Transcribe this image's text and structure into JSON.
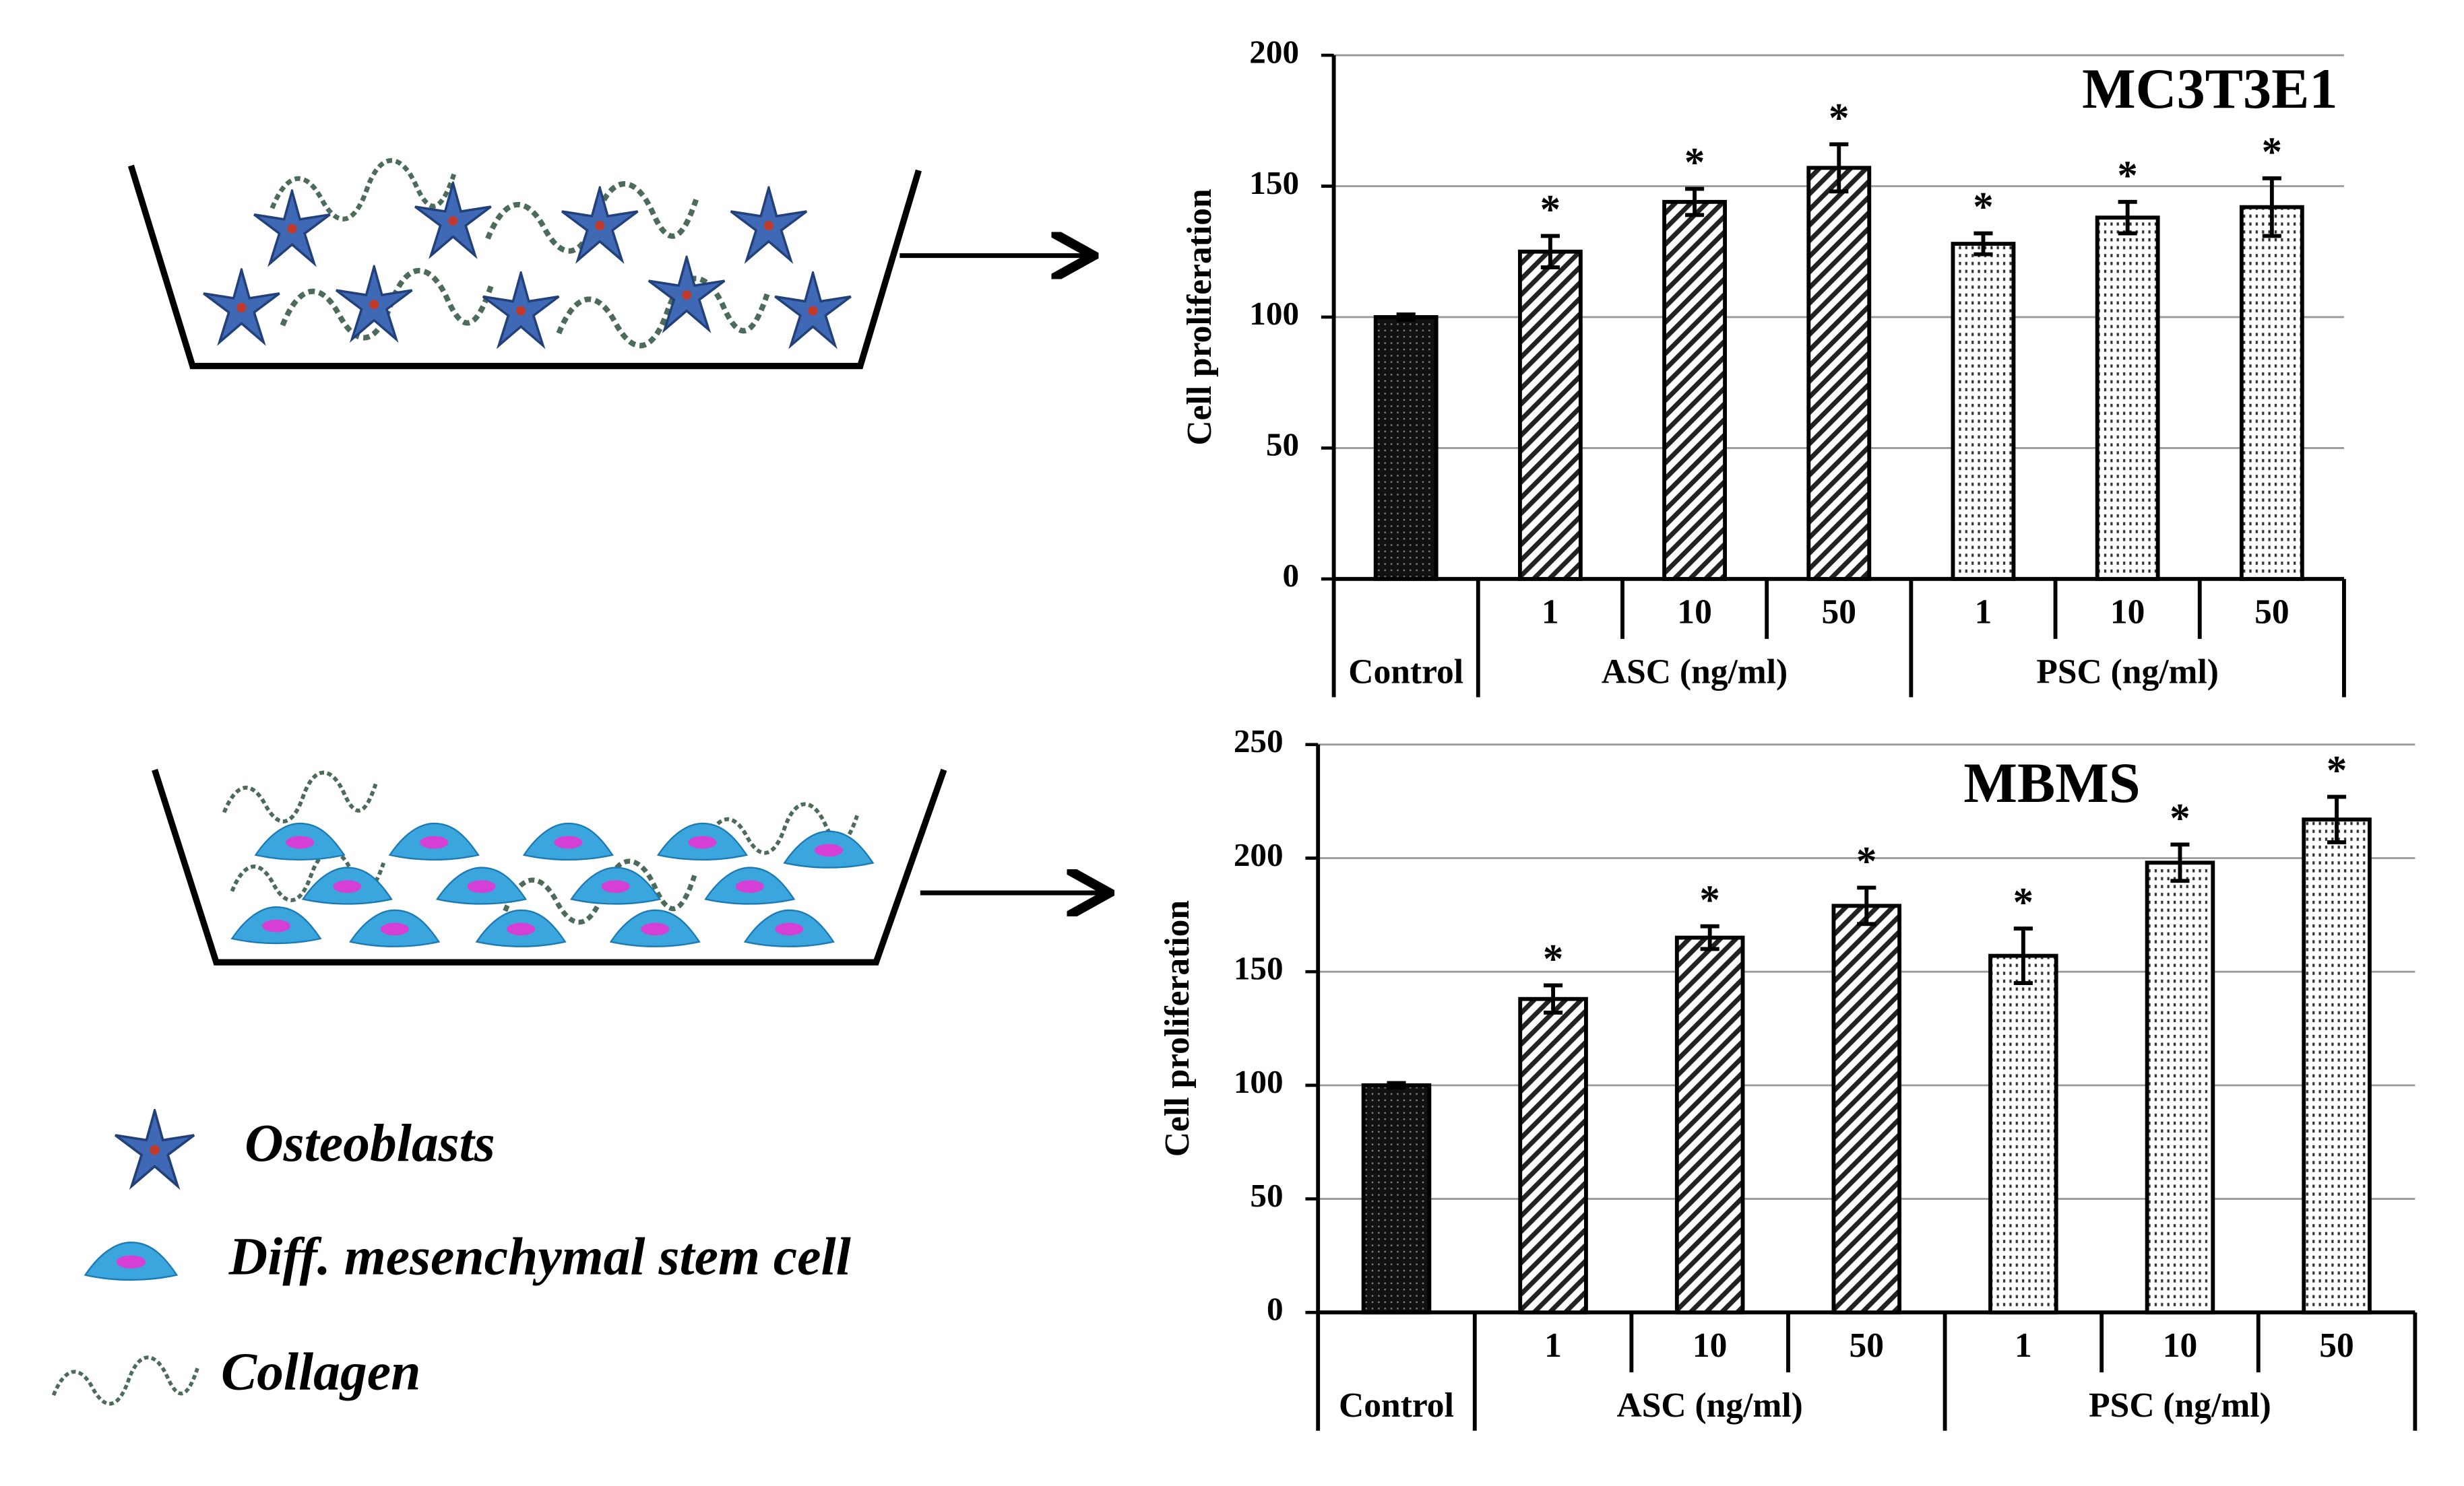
{
  "schematic": {
    "labels": [
      "Osteoblasts",
      "Diff. mesenchymal stem cell",
      "Collagen"
    ]
  },
  "chart_data": [
    {
      "type": "bar",
      "title": "MC3T3E1",
      "ylabel": "Cell proliferation",
      "categories": [
        null,
        "1",
        "10",
        "50",
        "1",
        "10",
        "50"
      ],
      "groups": [
        {
          "name": "Control",
          "count": 1
        },
        {
          "name": "ASC (ng/ml)",
          "count": 3
        },
        {
          "name": "PSC (ng/ml)",
          "count": 3
        }
      ],
      "values": [
        100,
        125,
        144,
        157,
        128,
        138,
        142
      ],
      "errors": [
        1,
        6,
        5,
        9,
        4,
        6,
        11
      ],
      "markers": [
        null,
        "*",
        "*",
        "*",
        "*",
        "*",
        "*"
      ],
      "patterns": [
        "dense",
        "hatch",
        "hatch",
        "hatch",
        "dots",
        "dots",
        "dots"
      ],
      "ylim": [
        0,
        200
      ],
      "yticks": [
        0,
        50,
        100,
        150,
        200
      ],
      "grid": true
    },
    {
      "type": "bar",
      "title": "MBMS",
      "ylabel": "Cell proliferation",
      "categories": [
        null,
        "1",
        "10",
        "50",
        "1",
        "10",
        "50"
      ],
      "groups": [
        {
          "name": "Control",
          "count": 1
        },
        {
          "name": "ASC (ng/ml)",
          "count": 3
        },
        {
          "name": "PSC (ng/ml)",
          "count": 3
        }
      ],
      "values": [
        100,
        138,
        165,
        179,
        157,
        198,
        217
      ],
      "errors": [
        1,
        6,
        5,
        8,
        12,
        8,
        10
      ],
      "markers": [
        null,
        "*",
        "*",
        "*",
        "*",
        "*",
        "*"
      ],
      "patterns": [
        "dense",
        "hatch",
        "hatch",
        "hatch",
        "dots",
        "dots",
        "dots"
      ],
      "ylim": [
        0,
        250
      ],
      "yticks": [
        0,
        50,
        100,
        150,
        200,
        250
      ],
      "grid": true
    }
  ]
}
